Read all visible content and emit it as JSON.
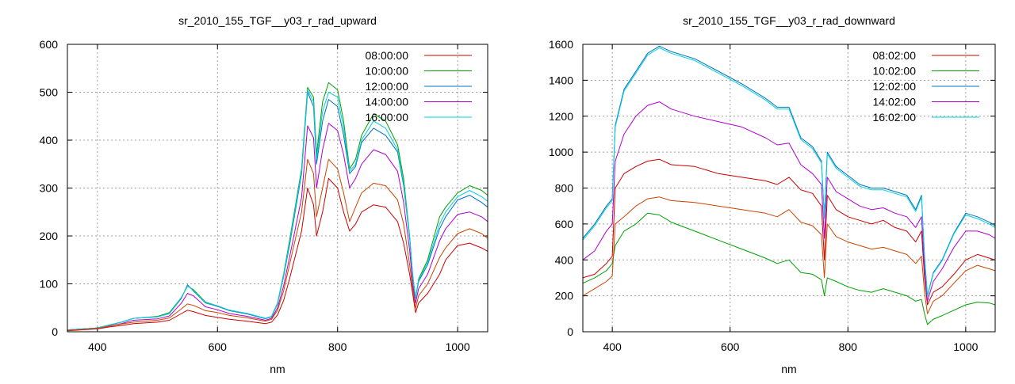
{
  "chart_data": [
    {
      "type": "line",
      "title": "sr_2010_155_TGF__y03_r_rad_upward",
      "xlabel": "nm",
      "ylabel": "",
      "xlim": [
        350,
        1050
      ],
      "ylim": [
        0,
        600
      ],
      "xticks": [
        400,
        600,
        800,
        1000
      ],
      "yticks": [
        0,
        100,
        200,
        300,
        400,
        500,
        600
      ],
      "grid": true,
      "legend_position": "top-right",
      "x": [
        350,
        400,
        420,
        440,
        460,
        500,
        520,
        540,
        550,
        560,
        580,
        600,
        620,
        650,
        680,
        690,
        700,
        710,
        720,
        740,
        750,
        760,
        765,
        775,
        785,
        800,
        810,
        820,
        830,
        840,
        860,
        880,
        900,
        910,
        920,
        925,
        930,
        935,
        950,
        970,
        980,
        1000,
        1020,
        1040,
        1050
      ],
      "series": [
        {
          "name": "08:00:00",
          "color": "#cc0000",
          "values": [
            2,
            6,
            10,
            13,
            17,
            20,
            24,
            38,
            45,
            42,
            34,
            30,
            26,
            22,
            17,
            20,
            35,
            65,
            110,
            210,
            300,
            265,
            200,
            250,
            320,
            300,
            250,
            210,
            225,
            250,
            265,
            260,
            230,
            185,
            120,
            80,
            40,
            60,
            80,
            120,
            150,
            180,
            185,
            175,
            168
          ]
        },
        {
          "name": "10:00:00",
          "color": "#00a000",
          "values": [
            4,
            8,
            14,
            20,
            28,
            32,
            40,
            72,
            95,
            88,
            62,
            54,
            45,
            38,
            28,
            32,
            60,
            120,
            190,
            340,
            510,
            490,
            370,
            480,
            520,
            505,
            440,
            340,
            360,
            410,
            455,
            440,
            390,
            320,
            200,
            120,
            70,
            110,
            150,
            240,
            260,
            290,
            305,
            295,
            285
          ]
        },
        {
          "name": "12:00:00",
          "color": "#0070c0",
          "values": [
            4,
            8,
            14,
            20,
            28,
            31,
            38,
            70,
            98,
            85,
            60,
            53,
            44,
            37,
            27,
            31,
            58,
            115,
            180,
            330,
            500,
            470,
            350,
            440,
            485,
            470,
            410,
            330,
            345,
            395,
            425,
            410,
            375,
            305,
            195,
            115,
            70,
            105,
            140,
            215,
            240,
            275,
            285,
            270,
            260
          ]
        },
        {
          "name": "14:00:00",
          "color": "#b000d0",
          "values": [
            3,
            7,
            12,
            17,
            24,
            27,
            33,
            60,
            80,
            75,
            52,
            46,
            38,
            32,
            24,
            28,
            50,
            95,
            155,
            280,
            430,
            405,
            300,
            380,
            435,
            420,
            370,
            300,
            320,
            350,
            380,
            370,
            335,
            270,
            170,
            100,
            60,
            90,
            120,
            190,
            215,
            245,
            250,
            240,
            230
          ]
        },
        {
          "name": "16:00:00",
          "color": "#00d0e0",
          "values": [
            4,
            8,
            14,
            20,
            28,
            31,
            38,
            72,
            96,
            86,
            61,
            54,
            45,
            38,
            28,
            32,
            59,
            118,
            185,
            335,
            505,
            480,
            360,
            460,
            500,
            490,
            425,
            335,
            350,
            400,
            440,
            425,
            380,
            310,
            198,
            118,
            70,
            108,
            145,
            225,
            250,
            282,
            295,
            282,
            272
          ]
        },
        {
          "name": "",
          "color": "#cc4400",
          "values": [
            3,
            7,
            12,
            16,
            20,
            24,
            29,
            48,
            58,
            55,
            44,
            40,
            34,
            29,
            22,
            26,
            45,
            85,
            140,
            250,
            360,
            330,
            240,
            300,
            360,
            340,
            290,
            230,
            260,
            290,
            310,
            305,
            275,
            225,
            140,
            90,
            50,
            75,
            100,
            155,
            175,
            205,
            215,
            205,
            195
          ]
        }
      ]
    },
    {
      "type": "line",
      "title": "sr_2010_155_TGF__y03_r_rad_downward",
      "xlabel": "nm",
      "ylabel": "",
      "xlim": [
        350,
        1050
      ],
      "ylim": [
        0,
        1600
      ],
      "xticks": [
        400,
        600,
        800,
        1000
      ],
      "yticks": [
        0,
        200,
        400,
        600,
        800,
        1000,
        1200,
        1400,
        1600
      ],
      "grid": true,
      "legend_position": "top-right",
      "x": [
        350,
        370,
        390,
        400,
        405,
        420,
        440,
        460,
        480,
        500,
        540,
        580,
        620,
        660,
        680,
        700,
        720,
        740,
        755,
        760,
        765,
        780,
        800,
        820,
        840,
        860,
        880,
        900,
        915,
        925,
        930,
        935,
        945,
        960,
        980,
        1000,
        1020,
        1040,
        1050
      ],
      "series": [
        {
          "name": "08:02:00",
          "color": "#cc0000",
          "values": [
            300,
            320,
            380,
            420,
            800,
            880,
            920,
            950,
            960,
            930,
            920,
            880,
            860,
            840,
            820,
            860,
            790,
            770,
            700,
            400,
            760,
            680,
            640,
            620,
            600,
            620,
            580,
            560,
            500,
            560,
            300,
            150,
            220,
            250,
            320,
            400,
            430,
            410,
            400
          ]
        },
        {
          "name": "10:02:00",
          "color": "#00a000",
          "values": [
            270,
            300,
            340,
            380,
            480,
            560,
            600,
            660,
            650,
            610,
            560,
            510,
            460,
            410,
            380,
            400,
            330,
            320,
            290,
            200,
            300,
            280,
            250,
            230,
            220,
            240,
            220,
            200,
            170,
            180,
            100,
            40,
            70,
            90,
            120,
            150,
            165,
            160,
            150
          ]
        },
        {
          "name": "12:02:00",
          "color": "#0070c0",
          "values": [
            520,
            600,
            700,
            740,
            1150,
            1350,
            1450,
            1550,
            1590,
            1560,
            1520,
            1450,
            1380,
            1300,
            1250,
            1250,
            1080,
            1030,
            950,
            640,
            1000,
            920,
            870,
            820,
            800,
            800,
            780,
            760,
            680,
            760,
            420,
            200,
            330,
            400,
            550,
            660,
            640,
            610,
            590
          ]
        },
        {
          "name": "14:02:00",
          "color": "#b000d0",
          "values": [
            400,
            450,
            560,
            600,
            950,
            1100,
            1200,
            1260,
            1280,
            1240,
            1200,
            1170,
            1140,
            1080,
            1040,
            1050,
            930,
            880,
            820,
            520,
            860,
            780,
            740,
            700,
            680,
            690,
            660,
            640,
            580,
            640,
            350,
            170,
            280,
            350,
            470,
            560,
            560,
            540,
            520
          ]
        },
        {
          "name": "16:02:00",
          "color": "#00d0e0",
          "values": [
            510,
            590,
            690,
            730,
            1140,
            1340,
            1440,
            1540,
            1580,
            1550,
            1510,
            1440,
            1370,
            1290,
            1240,
            1240,
            1070,
            1020,
            940,
            630,
            990,
            910,
            860,
            810,
            790,
            790,
            770,
            750,
            670,
            750,
            415,
            195,
            325,
            395,
            545,
            650,
            630,
            600,
            580
          ]
        },
        {
          "name": "",
          "color": "#cc4400",
          "values": [
            200,
            240,
            280,
            310,
            600,
            640,
            700,
            740,
            750,
            730,
            720,
            700,
            680,
            660,
            640,
            680,
            610,
            590,
            540,
            300,
            600,
            530,
            500,
            480,
            460,
            470,
            450,
            430,
            380,
            420,
            220,
            100,
            170,
            200,
            270,
            340,
            370,
            350,
            340
          ]
        }
      ]
    }
  ]
}
